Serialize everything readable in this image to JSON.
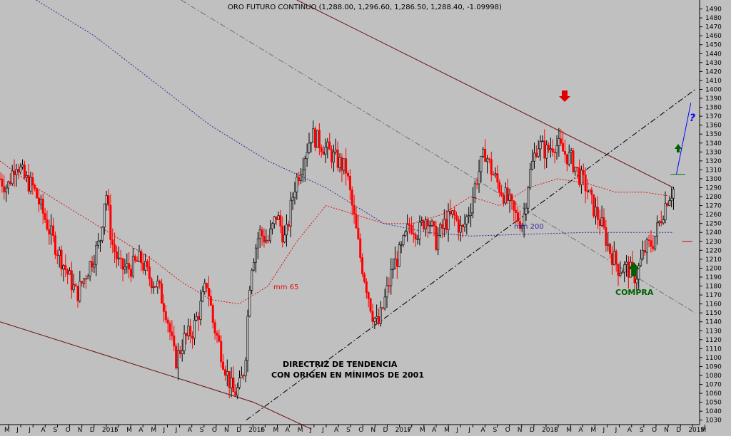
{
  "chart_data": {
    "type": "candlestick",
    "title": "ORO FUTURO CONTINUO (1,288.00, 1,296.60, 1,286.50, 1,288.40, -1.09998)",
    "ylim": [
      1025,
      1500
    ],
    "y_ticks": [
      1030,
      1040,
      1050,
      1060,
      1070,
      1080,
      1090,
      1100,
      1110,
      1120,
      1130,
      1140,
      1150,
      1160,
      1170,
      1180,
      1190,
      1200,
      1210,
      1220,
      1230,
      1240,
      1250,
      1260,
      1270,
      1280,
      1290,
      1300,
      1310,
      1320,
      1330,
      1340,
      1350,
      1360,
      1370,
      1380,
      1390,
      1400,
      1410,
      1420,
      1430,
      1440,
      1450,
      1460,
      1470,
      1480,
      1490
    ],
    "x_month_labels": [
      "M",
      "J",
      "J",
      "A",
      "S",
      "O",
      "N",
      "D",
      "2015",
      "F",
      "M",
      "A",
      "M",
      "J",
      "J",
      "A",
      "S",
      "O",
      "N",
      "D",
      "2016",
      "F",
      "M",
      "A",
      "M",
      "J",
      "J",
      "A",
      "S",
      "O",
      "N",
      "D",
      "2017",
      "F",
      "M",
      "A",
      "M",
      "J",
      "J",
      "A",
      "S",
      "O",
      "N",
      "D",
      "2018",
      "F",
      "M",
      "A",
      "M",
      "J",
      "J",
      "A",
      "S",
      "O",
      "N",
      "D",
      "2019",
      "M"
    ],
    "close_path": [
      [
        2014.35,
        1300
      ],
      [
        2014.4,
        1290
      ],
      [
        2014.46,
        1320
      ],
      [
        2014.52,
        1300
      ],
      [
        2014.58,
        1290
      ],
      [
        2014.65,
        1260
      ],
      [
        2014.72,
        1230
      ],
      [
        2014.8,
        1200
      ],
      [
        2014.88,
        1170
      ],
      [
        2014.96,
        1200
      ],
      [
        2015.04,
        1230
      ],
      [
        2015.08,
        1290
      ],
      [
        2015.12,
        1230
      ],
      [
        2015.18,
        1200
      ],
      [
        2015.25,
        1200
      ],
      [
        2015.32,
        1210
      ],
      [
        2015.38,
        1190
      ],
      [
        2015.44,
        1180
      ],
      [
        2015.5,
        1150
      ],
      [
        2015.56,
        1095
      ],
      [
        2015.62,
        1120
      ],
      [
        2015.68,
        1130
      ],
      [
        2015.74,
        1160
      ],
      [
        2015.78,
        1185
      ],
      [
        2015.82,
        1140
      ],
      [
        2015.87,
        1110
      ],
      [
        2015.92,
        1080
      ],
      [
        2015.96,
        1060
      ],
      [
        2016.0,
        1065
      ],
      [
        2016.04,
        1090
      ],
      [
        2016.08,
        1200
      ],
      [
        2016.14,
        1240
      ],
      [
        2016.2,
        1230
      ],
      [
        2016.26,
        1260
      ],
      [
        2016.32,
        1230
      ],
      [
        2016.38,
        1290
      ],
      [
        2016.44,
        1320
      ],
      [
        2016.5,
        1350
      ],
      [
        2016.56,
        1340
      ],
      [
        2016.62,
        1330
      ],
      [
        2016.68,
        1320
      ],
      [
        2016.74,
        1310
      ],
      [
        2016.78,
        1270
      ],
      [
        2016.84,
        1210
      ],
      [
        2016.88,
        1180
      ],
      [
        2016.92,
        1150
      ],
      [
        2016.96,
        1135
      ],
      [
        2017.0,
        1160
      ],
      [
        2017.06,
        1200
      ],
      [
        2017.12,
        1220
      ],
      [
        2017.18,
        1250
      ],
      [
        2017.24,
        1240
      ],
      [
        2017.3,
        1260
      ],
      [
        2017.36,
        1230
      ],
      [
        2017.42,
        1250
      ],
      [
        2017.48,
        1260
      ],
      [
        2017.54,
        1240
      ],
      [
        2017.6,
        1270
      ],
      [
        2017.64,
        1300
      ],
      [
        2017.7,
        1330
      ],
      [
        2017.74,
        1310
      ],
      [
        2017.8,
        1290
      ],
      [
        2017.86,
        1275
      ],
      [
        2017.9,
        1260
      ],
      [
        2017.96,
        1250
      ],
      [
        2018.0,
        1300
      ],
      [
        2018.06,
        1340
      ],
      [
        2018.12,
        1330
      ],
      [
        2018.18,
        1340
      ],
      [
        2018.24,
        1330
      ],
      [
        2018.3,
        1320
      ],
      [
        2018.36,
        1300
      ],
      [
        2018.4,
        1290
      ],
      [
        2018.44,
        1270
      ],
      [
        2018.5,
        1250
      ],
      [
        2018.56,
        1220
      ],
      [
        2018.62,
        1200
      ],
      [
        2018.68,
        1200
      ],
      [
        2018.74,
        1190
      ],
      [
        2018.8,
        1220
      ],
      [
        2018.86,
        1230
      ],
      [
        2018.92,
        1260
      ],
      [
        2018.96,
        1280
      ],
      [
        2019.0,
        1288
      ]
    ],
    "lines": [
      {
        "label": "mm 65",
        "style": "dotted",
        "color": "#dd1111",
        "points": [
          [
            2014.35,
            1320
          ],
          [
            2014.6,
            1290
          ],
          [
            2014.8,
            1270
          ],
          [
            2015.0,
            1250
          ],
          [
            2015.2,
            1230
          ],
          [
            2015.4,
            1210
          ],
          [
            2015.6,
            1185
          ],
          [
            2015.8,
            1165
          ],
          [
            2016.0,
            1160
          ],
          [
            2016.2,
            1180
          ],
          [
            2016.4,
            1230
          ],
          [
            2016.6,
            1270
          ],
          [
            2016.8,
            1260
          ],
          [
            2017.0,
            1250
          ],
          [
            2017.2,
            1250
          ],
          [
            2017.4,
            1260
          ],
          [
            2017.6,
            1280
          ],
          [
            2017.8,
            1270
          ],
          [
            2018.0,
            1290
          ],
          [
            2018.2,
            1300
          ],
          [
            2018.4,
            1295
          ],
          [
            2018.6,
            1285
          ],
          [
            2018.8,
            1285
          ],
          [
            2019.0,
            1280
          ]
        ]
      },
      {
        "label": "mm 200",
        "style": "dotted",
        "color": "#3a2a99",
        "points": [
          [
            2014.6,
            1500
          ],
          [
            2015.0,
            1460
          ],
          [
            2015.4,
            1410
          ],
          [
            2015.8,
            1360
          ],
          [
            2016.2,
            1320
          ],
          [
            2016.6,
            1290
          ],
          [
            2017.0,
            1250
          ],
          [
            2017.3,
            1240
          ],
          [
            2017.6,
            1236
          ],
          [
            2018.0,
            1238
          ],
          [
            2018.4,
            1240
          ],
          [
            2018.7,
            1240
          ],
          [
            2019.0,
            1240
          ]
        ]
      },
      {
        "label": "",
        "style": "solid",
        "color": "#6b0f0f",
        "points": [
          [
            2014.35,
            1140
          ],
          [
            2016.1,
            1050
          ],
          [
            2016.5,
            1020
          ]
        ]
      },
      {
        "label": "",
        "style": "solid",
        "color": "#6b0f0f",
        "points": [
          [
            2016.4,
            1500
          ],
          [
            2019.0,
            1290
          ]
        ]
      },
      {
        "label": "",
        "style": "dashdot",
        "color": "#000000",
        "points": [
          [
            2016.05,
            1030
          ],
          [
            2019.15,
            1400
          ]
        ]
      },
      {
        "label": "",
        "style": "dashdot",
        "color": "#707070",
        "points": [
          [
            2015.6,
            1500
          ],
          [
            2019.15,
            1150
          ]
        ]
      },
      {
        "label": "",
        "style": "solid",
        "color": "#0000ff",
        "points": [
          [
            2019.02,
            1305
          ],
          [
            2019.12,
            1385
          ]
        ]
      },
      {
        "label": "",
        "style": "solid",
        "color": "#007000",
        "points": [
          [
            2018.98,
            1305
          ],
          [
            2019.08,
            1305
          ]
        ]
      },
      {
        "label": "",
        "style": "solid",
        "color": "#cc0000",
        "points": [
          [
            2019.06,
            1230
          ],
          [
            2019.13,
            1230
          ]
        ]
      }
    ],
    "annotations": {
      "mm65": "mm 65",
      "mm200": "mm 200",
      "trend_line1": "DIRECTRIZ DE TENDENCIA",
      "trend_line2": "CON ORIGEN EN MÍNIMOS DE 2001",
      "compra": "COMPRA",
      "question": "?",
      "arrow_down_color": "#e00000",
      "arrow_up_color": "#006000"
    },
    "grid": false,
    "legend": "none",
    "colors": {
      "up": "#000000",
      "down": "#ff0000",
      "background": "#c0c0c0"
    }
  }
}
